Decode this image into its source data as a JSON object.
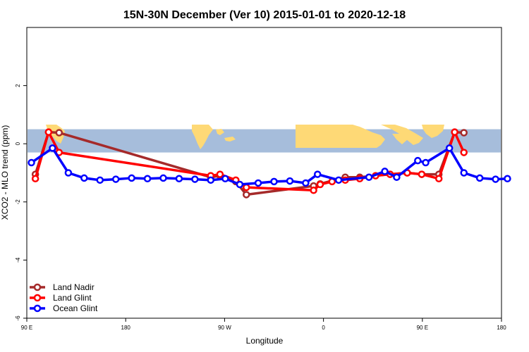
{
  "chart_data": {
    "type": "line",
    "title": "15N-30N December (Ver 10)   2015-01-01 to 2020-12-18",
    "xlabel": "Longitude",
    "ylabel": "XCO2 - MLO trend (ppm)",
    "xlim": [
      60,
      420
    ],
    "ylim": [
      -6,
      4
    ],
    "x_ticks": [
      {
        "value": 60,
        "label": "90 E"
      },
      {
        "value": 135,
        "label": "180"
      },
      {
        "value": 210,
        "label": "90 W"
      },
      {
        "value": 285,
        "label": "0"
      },
      {
        "value": 360,
        "label": "90 E"
      },
      {
        "value": 420,
        "label": "180"
      }
    ],
    "y_ticks": [
      {
        "value": 2,
        "label": "2"
      },
      {
        "value": 0,
        "label": "0"
      },
      {
        "value": -2,
        "label": "-2"
      },
      {
        "value": -4,
        "label": "-4"
      },
      {
        "value": -6,
        "label": "-6"
      }
    ],
    "map_band": {
      "ymin": -0.3,
      "ymax": 0.5,
      "ocean_color": "#a6bddb",
      "land_color": "#fed976"
    },
    "legend_position": "bottom-left",
    "series": [
      {
        "name": "Land Nadir",
        "color": "#a52a2a",
        "points": [
          [
            66.5,
            -1.05
          ],
          [
            76.5,
            0.4
          ],
          [
            84.5,
            0.38
          ],
          [
            199.5,
            -1.15
          ],
          [
            206.5,
            -1.1
          ],
          [
            218.5,
            -1.3
          ],
          [
            226.5,
            -1.75
          ],
          [
            277.5,
            -1.45
          ],
          [
            282.5,
            -1.38
          ],
          [
            301.5,
            -1.15
          ],
          [
            312.5,
            -1.15
          ],
          [
            335.5,
            -1.05
          ],
          [
            348.5,
            -1.0
          ],
          [
            359.5,
            -1.05
          ],
          [
            372.5,
            -1.05
          ],
          [
            384.5,
            0.4
          ],
          [
            391.5,
            0.38
          ]
        ]
      },
      {
        "name": "Land Glint",
        "color": "#ff0000",
        "points": [
          [
            66.5,
            -1.2
          ],
          [
            76.5,
            0.4
          ],
          [
            84.5,
            -0.3
          ],
          [
            199.5,
            -1.1
          ],
          [
            206.5,
            -1.05
          ],
          [
            218.5,
            -1.25
          ],
          [
            226.5,
            -1.5
          ],
          [
            277.5,
            -1.6
          ],
          [
            282.5,
            -1.4
          ],
          [
            291.5,
            -1.3
          ],
          [
            301.5,
            -1.25
          ],
          [
            312.5,
            -1.2
          ],
          [
            324.5,
            -1.1
          ],
          [
            335.5,
            -1.05
          ],
          [
            348.5,
            -1.0
          ],
          [
            359.5,
            -1.05
          ],
          [
            372.5,
            -1.2
          ],
          [
            384.5,
            0.4
          ],
          [
            391.5,
            -0.3
          ]
        ]
      },
      {
        "name": "Ocean Glint",
        "color": "#0000ff",
        "points": [
          [
            63.5,
            -0.65
          ],
          [
            79.5,
            -0.15
          ],
          [
            91.5,
            -1.0
          ],
          [
            103.5,
            -1.18
          ],
          [
            115.5,
            -1.25
          ],
          [
            127.5,
            -1.22
          ],
          [
            139.5,
            -1.18
          ],
          [
            151.5,
            -1.2
          ],
          [
            163.5,
            -1.18
          ],
          [
            175.5,
            -1.2
          ],
          [
            187.5,
            -1.22
          ],
          [
            199.5,
            -1.25
          ],
          [
            210.5,
            -1.2
          ],
          [
            221.5,
            -1.4
          ],
          [
            235.5,
            -1.35
          ],
          [
            247.5,
            -1.3
          ],
          [
            259.5,
            -1.28
          ],
          [
            271.5,
            -1.35
          ],
          [
            280.5,
            -1.05
          ],
          [
            296.5,
            -1.25
          ],
          [
            319.5,
            -1.15
          ],
          [
            331.5,
            -0.95
          ],
          [
            340.5,
            -1.15
          ],
          [
            356.5,
            -0.58
          ],
          [
            362.5,
            -0.65
          ],
          [
            380.5,
            -0.15
          ],
          [
            391.5,
            -1.0
          ],
          [
            403.5,
            -1.18
          ],
          [
            415.5,
            -1.22
          ],
          [
            424.5,
            -1.2
          ]
        ]
      }
    ]
  }
}
